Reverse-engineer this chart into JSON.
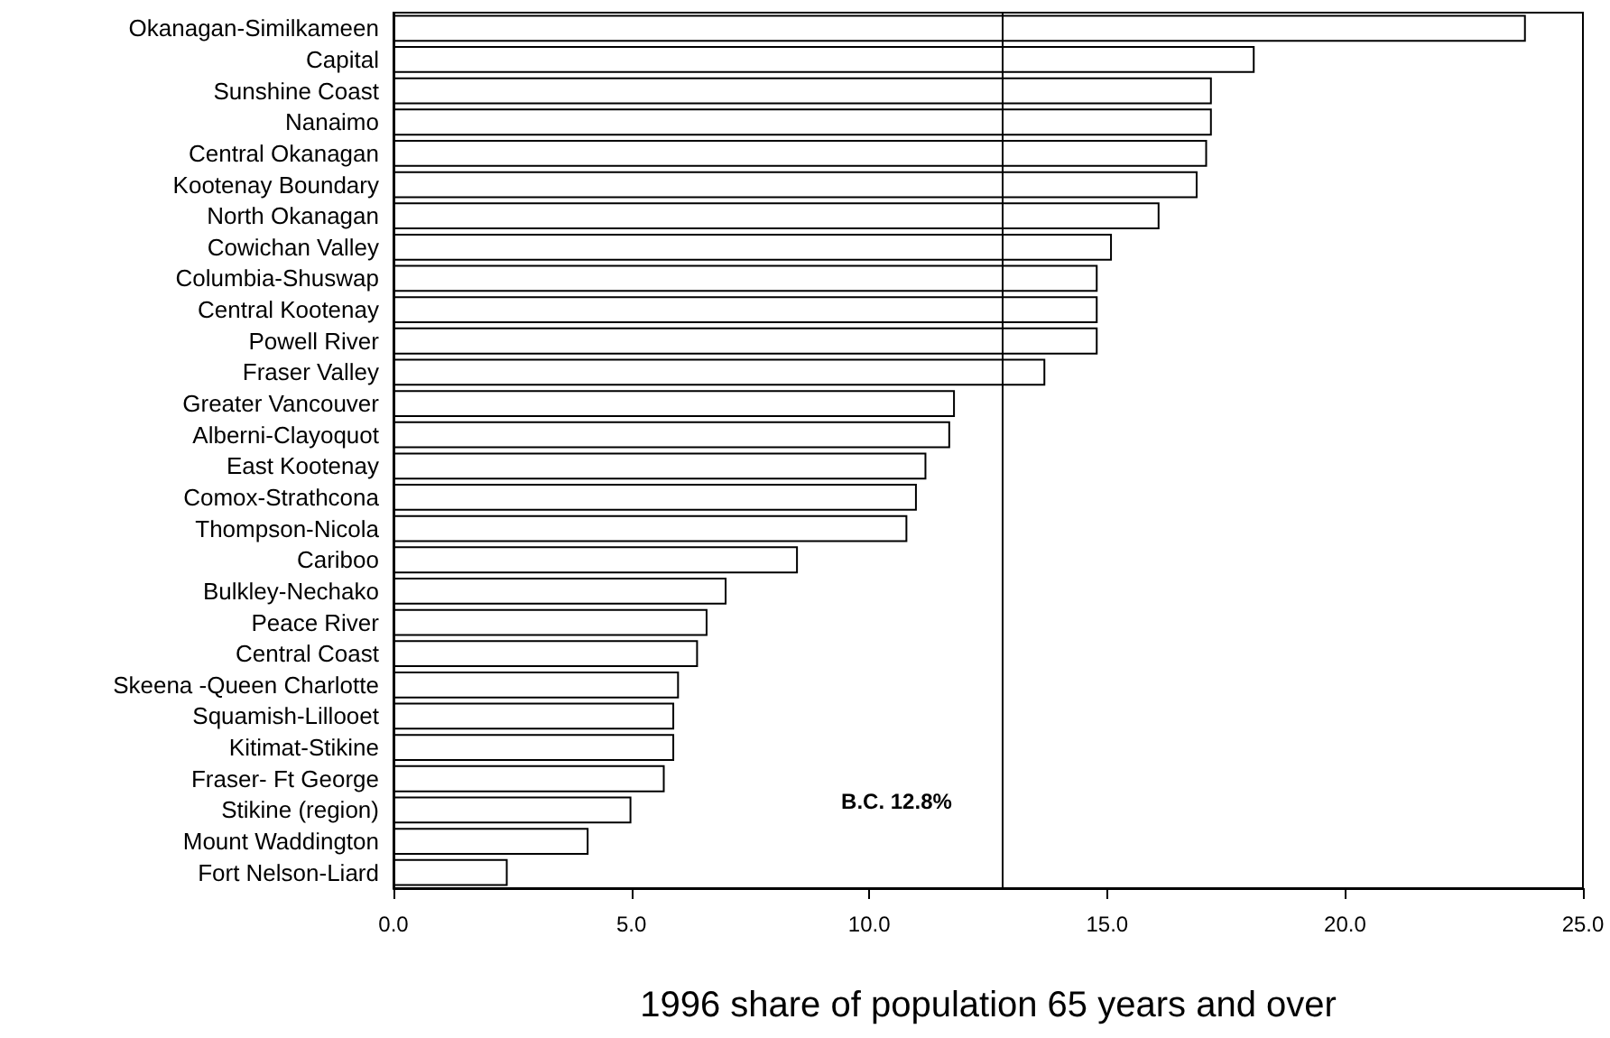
{
  "chart_data": {
    "type": "bar",
    "orientation": "horizontal",
    "xlabel": "1996 share of population 65 years and over",
    "categories": [
      "Okanagan-Similkameen",
      "Capital",
      "Sunshine Coast",
      "Nanaimo",
      "Central Okanagan",
      "Kootenay Boundary",
      "North Okanagan",
      "Cowichan Valley",
      "Columbia-Shuswap",
      "Central Kootenay",
      "Powell River",
      "Fraser Valley",
      "Greater Vancouver",
      "Alberni-Clayoquot",
      "East Kootenay",
      "Comox-Strathcona",
      "Thompson-Nicola",
      "Cariboo",
      "Bulkley-Nechako",
      "Peace River",
      "Central Coast",
      "Skeena -Queen Charlotte",
      "Squamish-Lillooet",
      "Kitimat-Stikine",
      "Fraser- Ft George",
      "Stikine (region)",
      "Mount Waddington",
      "Fort Nelson-Liard"
    ],
    "values": [
      23.8,
      18.1,
      17.2,
      17.2,
      17.1,
      16.9,
      16.1,
      15.1,
      14.8,
      14.8,
      14.8,
      13.7,
      11.8,
      11.7,
      11.2,
      11.0,
      10.8,
      8.5,
      7.0,
      6.6,
      6.4,
      6.0,
      5.9,
      5.9,
      5.7,
      5.0,
      4.1,
      2.4
    ],
    "color": "#ffffff",
    "xlim": [
      0,
      25
    ],
    "xticks": [
      {
        "value": 0,
        "label": "0.0"
      },
      {
        "value": 5,
        "label": "5.0"
      },
      {
        "value": 10,
        "label": "10.0"
      },
      {
        "value": 15,
        "label": "15.0"
      },
      {
        "value": 20,
        "label": "20.0"
      },
      {
        "value": 25,
        "label": "25.0"
      }
    ],
    "ref_lines": [
      {
        "axis": "x",
        "value": 12.8,
        "label": "B.C. 12.8%",
        "color": "#000000"
      }
    ],
    "grid": false
  }
}
